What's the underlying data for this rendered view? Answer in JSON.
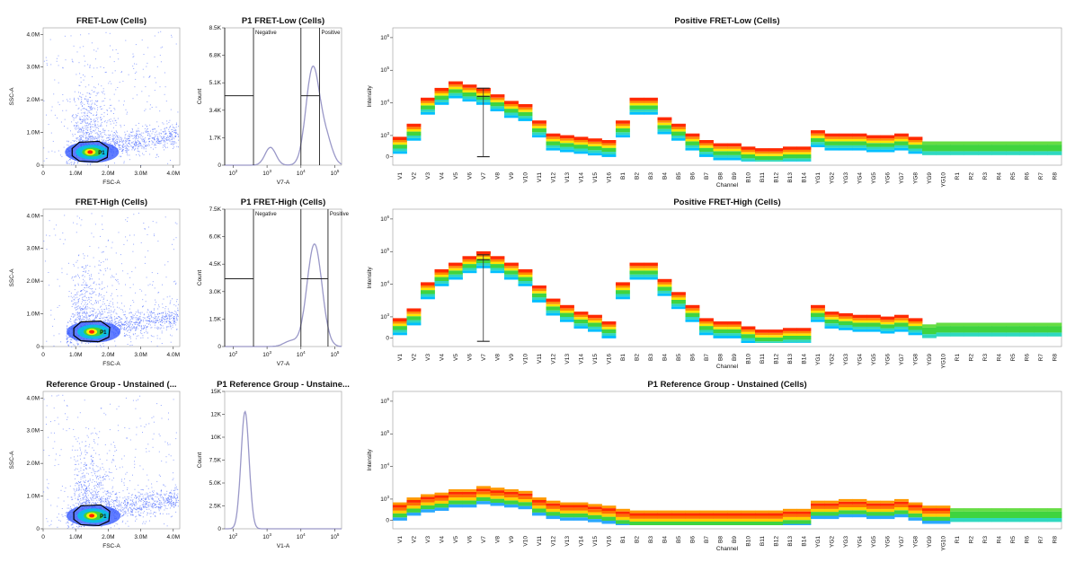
{
  "chart_data": [
    {
      "type": "scatter",
      "id": "sc0",
      "title": "FRET-Low (Cells)",
      "xlabel": "FSC-A",
      "ylabel": "SSC-A",
      "xlim": [
        0,
        4200000
      ],
      "ylim": [
        0,
        4200000
      ],
      "xticks": [
        "0",
        "1.0M",
        "2.0M",
        "3.0M",
        "4.0M"
      ],
      "yticks": [
        "0",
        "1.0M",
        "2.0M",
        "3.0M",
        "4.0M"
      ],
      "gate": "P1",
      "gate_center": [
        1500000,
        400000
      ]
    },
    {
      "type": "histogram",
      "id": "h0",
      "title": "P1 FRET-Low (Cells)",
      "xlabel": "V7-A",
      "ylabel": "Count",
      "xscale": "log",
      "xlim_exp": [
        1.75,
        5.2
      ],
      "xticks": [
        "10^2",
        "10^3",
        "10^4",
        "10^5"
      ],
      "yticks": [
        "0",
        "1.7K",
        "3.4K",
        "5.1K",
        "6.8K",
        "8.5K"
      ],
      "ymax": 8500,
      "gates": [
        {
          "label": "Negative",
          "start_exp": 1.75,
          "end_exp": 2.6,
          "count": 4300
        },
        {
          "label": "Positive",
          "start_exp": 4.0,
          "end_exp": 4.55,
          "count": 4300
        }
      ],
      "peaks": [
        {
          "center_exp": 3.1,
          "width": 0.16,
          "height": 1100
        },
        {
          "center_exp": 4.35,
          "width": 0.2,
          "height": 6000
        },
        {
          "center_exp": 4.75,
          "width": 0.18,
          "height": 1500
        }
      ]
    },
    {
      "type": "heatmap",
      "id": "sp0",
      "title": "Positive FRET-Low (Cells)",
      "xlabel": "Channel",
      "ylabel": "Intensity",
      "yscale": "log",
      "yticks": [
        "0",
        "10^3",
        "10^4",
        "10^5",
        "10^6"
      ],
      "channels": [
        "V1",
        "V2",
        "V3",
        "V4",
        "V5",
        "V6",
        "V7",
        "V8",
        "V9",
        "V10",
        "V11",
        "V12",
        "V13",
        "V14",
        "V15",
        "V16",
        "B1",
        "B2",
        "B3",
        "B4",
        "B5",
        "B6",
        "B7",
        "B8",
        "B9",
        "B10",
        "B11",
        "B12",
        "B13",
        "B14",
        "YG1",
        "YG2",
        "YG3",
        "YG4",
        "YG5",
        "YG6",
        "YG7",
        "YG8",
        "YG9",
        "YG10",
        "R1",
        "R2",
        "R3",
        "R4",
        "R5",
        "R6",
        "R7",
        "R8"
      ],
      "median_log10": [
        2.7,
        3.1,
        3.9,
        4.2,
        4.4,
        4.3,
        4.2,
        4.0,
        3.8,
        3.7,
        3.2,
        2.8,
        2.75,
        2.7,
        2.65,
        2.6,
        3.2,
        3.9,
        3.9,
        3.3,
        3.1,
        2.8,
        2.6,
        2.5,
        2.5,
        2.4,
        2.35,
        2.35,
        2.4,
        2.4,
        2.9,
        2.8,
        2.8,
        2.8,
        2.75,
        2.75,
        2.8,
        2.7,
        2.6,
        2.6,
        2.6,
        2.6,
        2.6,
        2.6,
        2.6,
        2.6,
        2.6,
        2.6
      ],
      "error_bar_channel": "V7",
      "error_bar_range_log10": [
        2.35,
        4.45
      ]
    },
    {
      "type": "scatter",
      "id": "sc1",
      "title": "FRET-High (Cells)",
      "xlabel": "FSC-A",
      "ylabel": "SSC-A",
      "xlim": [
        0,
        4200000
      ],
      "ylim": [
        0,
        4200000
      ],
      "xticks": [
        "0",
        "1.0M",
        "2.0M",
        "3.0M",
        "4.0M"
      ],
      "yticks": [
        "0",
        "1.0M",
        "2.0M",
        "3.0M",
        "4.0M"
      ],
      "gate": "P1",
      "gate_center": [
        1550000,
        450000
      ]
    },
    {
      "type": "histogram",
      "id": "h1",
      "title": "P1 FRET-High (Cells)",
      "xlabel": "V7-A",
      "ylabel": "Count",
      "xscale": "log",
      "xlim_exp": [
        1.75,
        5.2
      ],
      "xticks": [
        "10^2",
        "10^3",
        "10^4",
        "10^5"
      ],
      "yticks": [
        "0",
        "1.5K",
        "3.0K",
        "4.5K",
        "6.0K",
        "7.5K"
      ],
      "ymax": 7500,
      "gates": [
        {
          "label": "Negative",
          "start_exp": 1.75,
          "end_exp": 2.6,
          "count": 3700
        },
        {
          "label": "Positive",
          "start_exp": 4.0,
          "end_exp": 4.8,
          "count": 3700
        }
      ],
      "peaks": [
        {
          "center_exp": 4.4,
          "width": 0.22,
          "height": 5600
        },
        {
          "center_exp": 3.7,
          "width": 0.2,
          "height": 300
        }
      ]
    },
    {
      "type": "heatmap",
      "id": "sp1",
      "title": "Positive FRET-High (Cells)",
      "xlabel": "Channel",
      "ylabel": "Intensity",
      "yscale": "log",
      "yticks": [
        "0",
        "10^3",
        "10^4",
        "10^5",
        "10^6"
      ],
      "channels": [
        "V1",
        "V2",
        "V3",
        "V4",
        "V5",
        "V6",
        "V7",
        "V8",
        "V9",
        "V10",
        "V11",
        "V12",
        "V13",
        "V14",
        "V15",
        "V16",
        "B1",
        "B2",
        "B3",
        "B4",
        "B5",
        "B6",
        "B7",
        "B8",
        "B9",
        "B10",
        "B11",
        "B12",
        "B13",
        "B14",
        "YG1",
        "YG2",
        "YG3",
        "YG4",
        "YG5",
        "YG6",
        "YG7",
        "YG8",
        "YG9",
        "YG10",
        "R1",
        "R2",
        "R3",
        "R4",
        "R5",
        "R6",
        "R7",
        "R8"
      ],
      "median_log10": [
        2.7,
        3.0,
        3.8,
        4.2,
        4.4,
        4.6,
        4.75,
        4.6,
        4.4,
        4.2,
        3.7,
        3.3,
        3.1,
        2.9,
        2.8,
        2.6,
        3.8,
        4.4,
        4.4,
        3.9,
        3.5,
        3.1,
        2.7,
        2.6,
        2.6,
        2.45,
        2.35,
        2.35,
        2.4,
        2.4,
        3.1,
        2.9,
        2.85,
        2.8,
        2.8,
        2.75,
        2.8,
        2.7,
        2.55,
        2.6,
        2.6,
        2.6,
        2.6,
        2.6,
        2.6,
        2.6,
        2.6,
        2.6
      ],
      "error_bar_channel": "V7",
      "error_bar_range_log10": [
        2.25,
        4.9
      ]
    },
    {
      "type": "scatter",
      "id": "sc2",
      "title": "Reference Group - Unstained (...",
      "xlabel": "FSC-A",
      "ylabel": "SSC-A",
      "xlim": [
        0,
        4200000
      ],
      "ylim": [
        0,
        4200000
      ],
      "xticks": [
        "0",
        "1.0M",
        "2.0M",
        "3.0M",
        "4.0M"
      ],
      "yticks": [
        "0",
        "1.0M",
        "2.0M",
        "3.0M",
        "4.0M"
      ],
      "gate": "P1",
      "gate_center": [
        1550000,
        400000
      ]
    },
    {
      "type": "histogram",
      "id": "h2",
      "title": "P1 Reference Group - Unstaine...",
      "xlabel": "V1-A",
      "ylabel": "Count",
      "xscale": "log",
      "xlim_exp": [
        1.75,
        5.2
      ],
      "xticks": [
        "10^2",
        "10^3",
        "10^4",
        "10^5"
      ],
      "yticks": [
        "0",
        "2.5K",
        "5.0K",
        "7.5K",
        "10K",
        "12K",
        "15K"
      ],
      "ymax": 15000,
      "gates": [],
      "peaks": [
        {
          "center_exp": 2.35,
          "width": 0.12,
          "height": 12800
        }
      ]
    },
    {
      "type": "heatmap",
      "id": "sp2",
      "title": "P1 Reference Group - Unstained (Cells)",
      "xlabel": "Channel",
      "ylabel": "Intensity",
      "yscale": "log",
      "yticks": [
        "0",
        "10^3",
        "10^4",
        "10^5",
        "10^6"
      ],
      "channels": [
        "V1",
        "V2",
        "V3",
        "V4",
        "V5",
        "V6",
        "V7",
        "V8",
        "V9",
        "V10",
        "V11",
        "V12",
        "V13",
        "V14",
        "V15",
        "V16",
        "B1",
        "B2",
        "B3",
        "B4",
        "B5",
        "B6",
        "B7",
        "B8",
        "B9",
        "B10",
        "B11",
        "B12",
        "B13",
        "B14",
        "YG1",
        "YG2",
        "YG3",
        "YG4",
        "YG5",
        "YG6",
        "YG7",
        "YG8",
        "YG9",
        "YG10",
        "R1",
        "R2",
        "R3",
        "R4",
        "R5",
        "R6",
        "R7",
        "R8"
      ],
      "median_log10": [
        2.6,
        2.75,
        2.85,
        2.9,
        3.0,
        3.0,
        3.1,
        3.05,
        3.0,
        2.95,
        2.75,
        2.65,
        2.6,
        2.6,
        2.55,
        2.5,
        2.4,
        2.35,
        2.35,
        2.35,
        2.35,
        2.35,
        2.35,
        2.35,
        2.35,
        2.35,
        2.35,
        2.35,
        2.4,
        2.4,
        2.65,
        2.65,
        2.7,
        2.7,
        2.65,
        2.65,
        2.7,
        2.6,
        2.5,
        2.5,
        2.5,
        2.5,
        2.5,
        2.5,
        2.5,
        2.5,
        2.5,
        2.5
      ]
    }
  ]
}
